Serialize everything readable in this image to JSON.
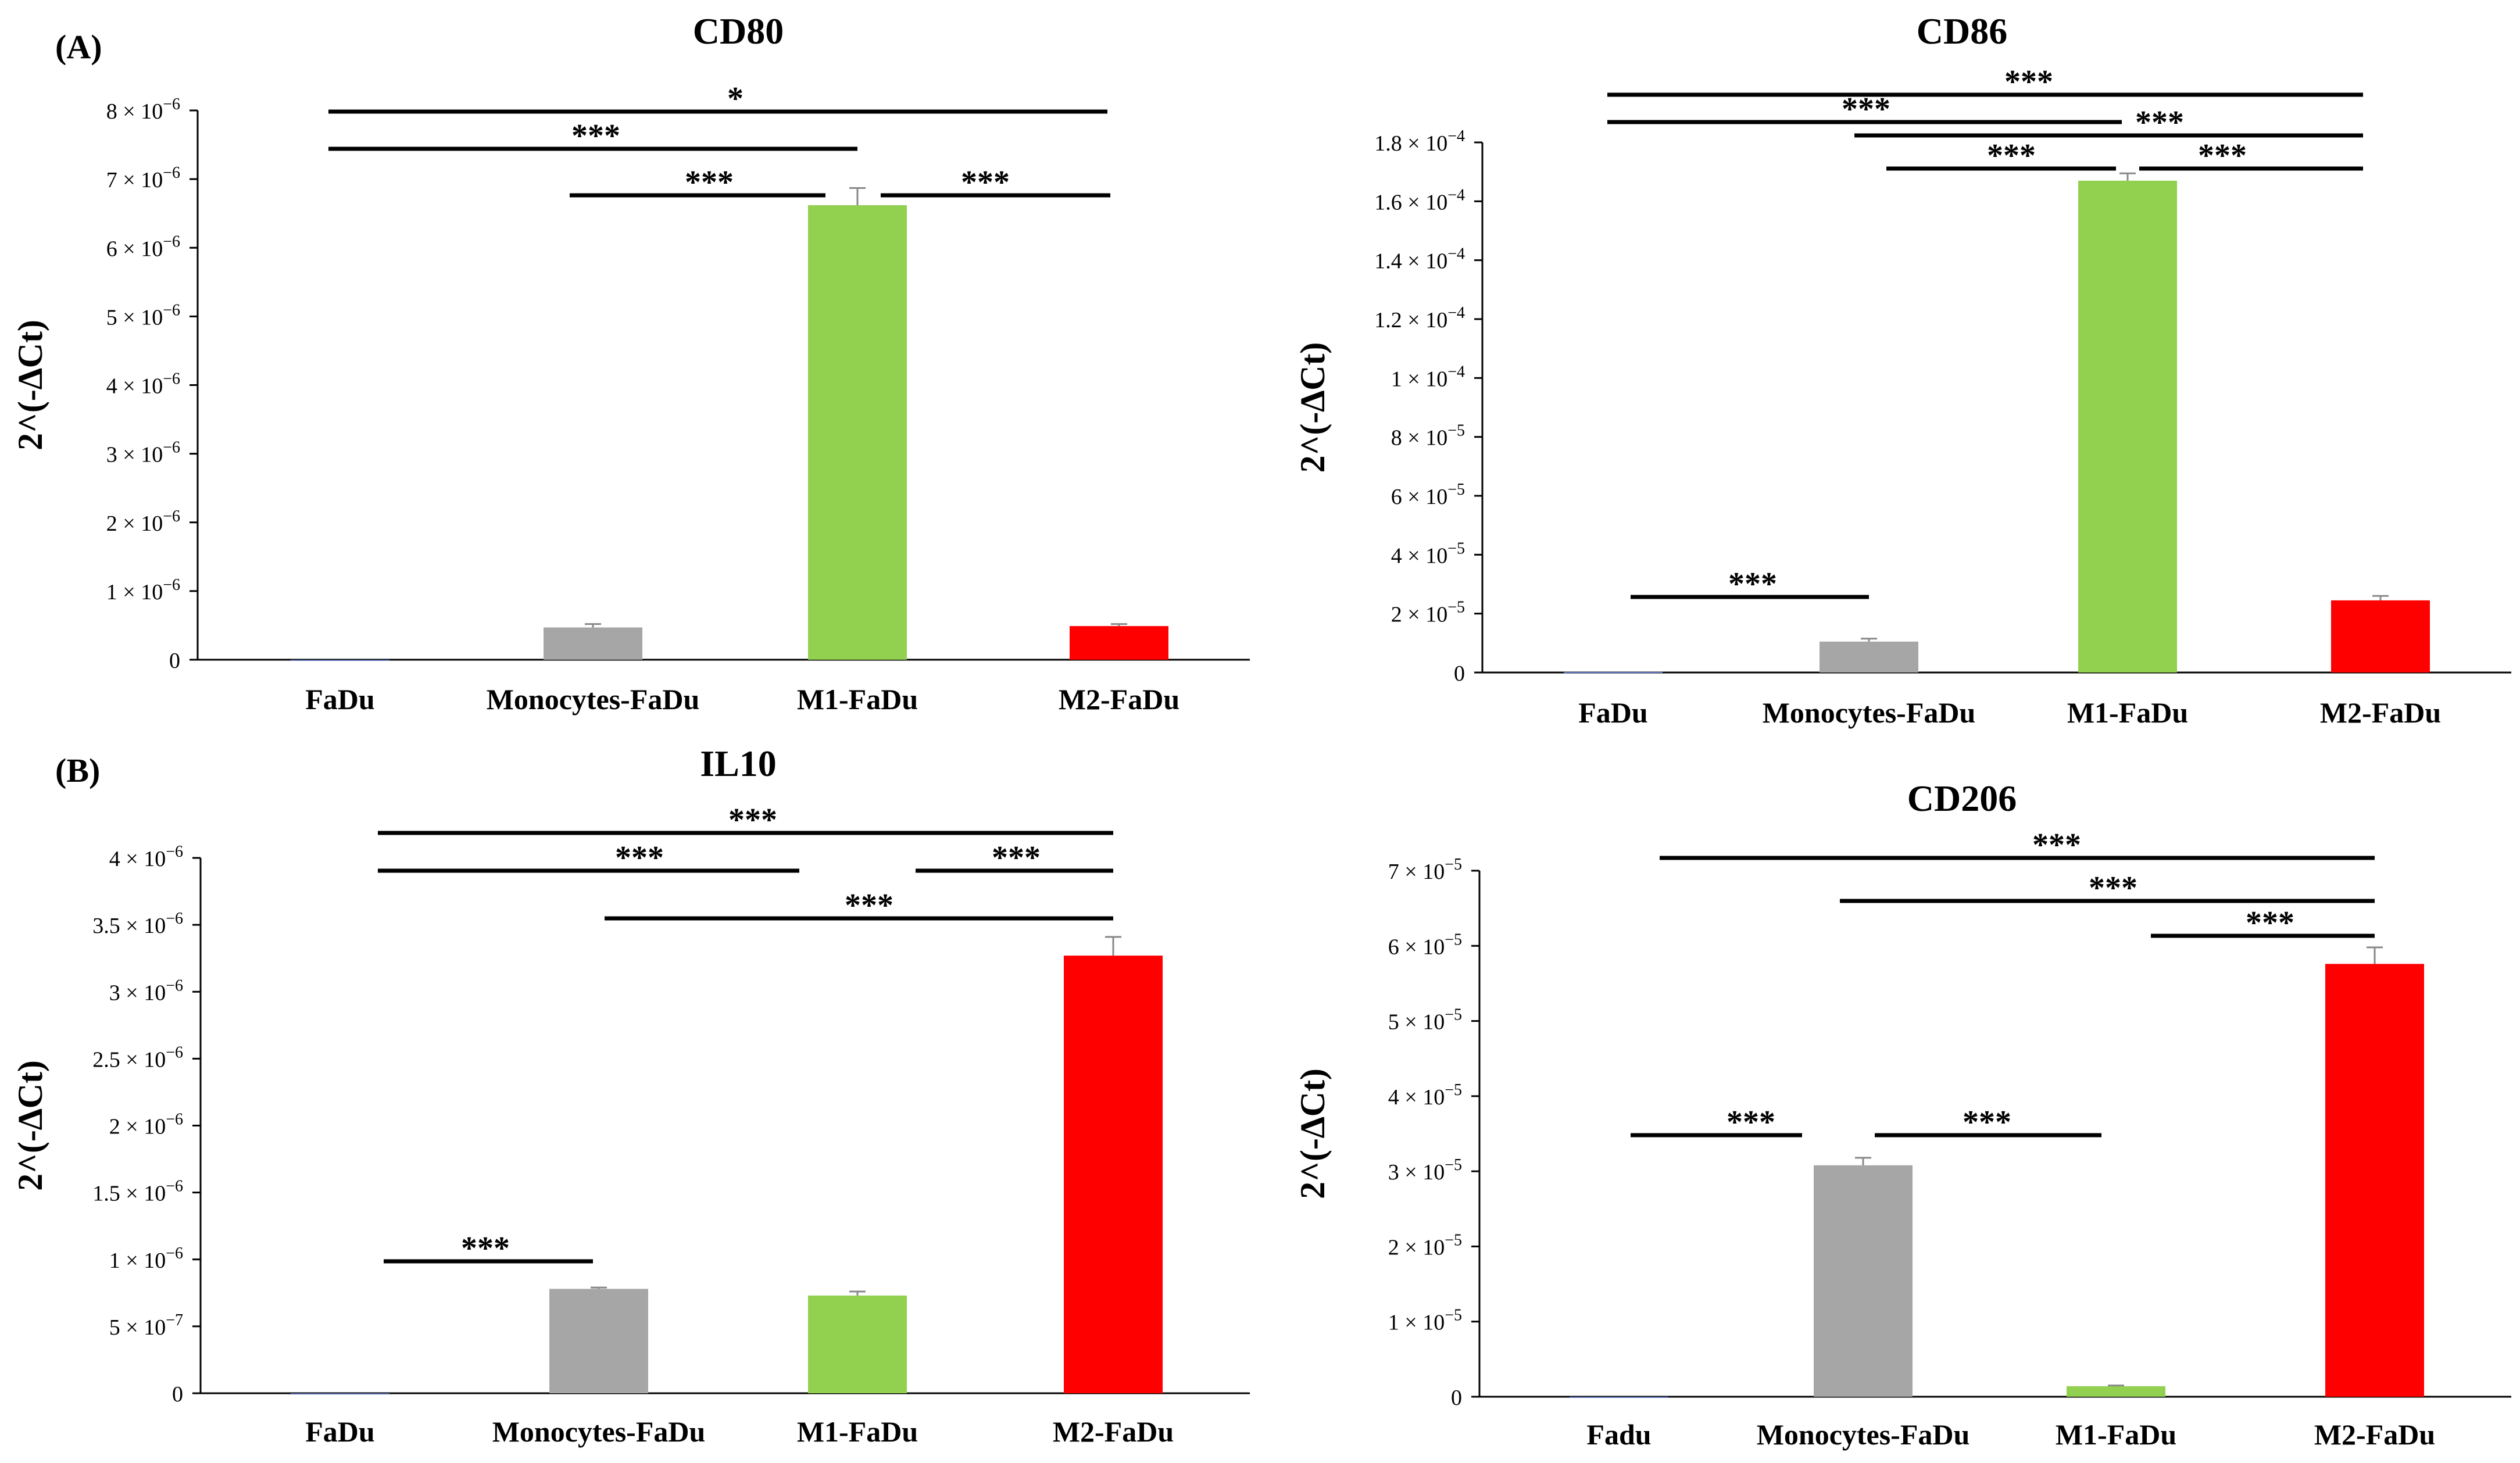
{
  "panel_labels": [
    "(A)",
    "(B)"
  ],
  "colors": {
    "FaDu": "#5b6fb5",
    "Monocytes-FaDu": "#a6a6a6",
    "M1-FaDu": "#92d050",
    "M2-FaDu": "#ff0000",
    "axis": "#000000",
    "error": "#888888"
  },
  "chart_data": [
    {
      "type": "bar",
      "title": "CD80",
      "ylabel": "2^(-∆Ct)",
      "categories": [
        "FaDu",
        "Monocytes-FaDu",
        "M1-FaDu",
        "M2-FaDu"
      ],
      "values": [
        0,
        4.7e-07,
        6.62e-06,
        4.9e-07
      ],
      "errors": [
        0,
        5e-08,
        2.5e-07,
        3e-08
      ],
      "ylim": [
        0,
        8e-06
      ],
      "yticks": [
        0,
        1e-06,
        2e-06,
        3e-06,
        4e-06,
        5e-06,
        6e-06,
        7e-06,
        8e-06
      ],
      "ytick_labels": [
        {
          "base": "0",
          "exp": ""
        },
        {
          "base": "1 × 10",
          "exp": "−6"
        },
        {
          "base": "2 × 10",
          "exp": "−6"
        },
        {
          "base": "3 × 10",
          "exp": "−6"
        },
        {
          "base": "4 × 10",
          "exp": "−6"
        },
        {
          "base": "5 × 10",
          "exp": "−6"
        },
        {
          "base": "6 × 10",
          "exp": "−6"
        },
        {
          "base": "7 × 10",
          "exp": "−6"
        },
        {
          "base": "8 × 10",
          "exp": "−6"
        }
      ],
      "significance": [
        {
          "from": "FaDu",
          "to": "M2-FaDu",
          "label": "*"
        },
        {
          "from": "FaDu",
          "to": "M1-FaDu",
          "label": "***"
        },
        {
          "from": "Monocytes-FaDu",
          "to": "M1-FaDu",
          "label": "***"
        },
        {
          "from": "M1-FaDu",
          "to": "M2-FaDu",
          "label": "***"
        }
      ]
    },
    {
      "type": "bar",
      "title": "CD86",
      "ylabel": "2^(-∆Ct)",
      "categories": [
        "FaDu",
        "Monocytes-FaDu",
        "M1-FaDu",
        "M2-FaDu"
      ],
      "values": [
        2e-07,
        1.05e-05,
        0.000167,
        2.45e-05
      ],
      "errors": [
        0,
        1e-06,
        2.5e-06,
        1.5e-06
      ],
      "ylim": [
        0,
        0.00018
      ],
      "yticks": [
        0,
        2e-05,
        4e-05,
        6e-05,
        8e-05,
        0.0001,
        0.00012,
        0.00014,
        0.00016,
        0.00018
      ],
      "ytick_labels": [
        {
          "base": "0",
          "exp": ""
        },
        {
          "base": "2 × 10",
          "exp": "−5"
        },
        {
          "base": "4 × 10",
          "exp": "−5"
        },
        {
          "base": "6 × 10",
          "exp": "−5"
        },
        {
          "base": "8 × 10",
          "exp": "−5"
        },
        {
          "base": "1 × 10",
          "exp": "−4"
        },
        {
          "base": "1.2 × 10",
          "exp": "−4"
        },
        {
          "base": "1.4 × 10",
          "exp": "−4"
        },
        {
          "base": "1.6 × 10",
          "exp": "−4"
        },
        {
          "base": "1.8 × 10",
          "exp": "−4"
        }
      ],
      "significance": [
        {
          "from": "FaDu",
          "to": "M2-FaDu",
          "label": "***"
        },
        {
          "from": "FaDu",
          "to": "M1-FaDu",
          "label": "***"
        },
        {
          "from": "Monocytes-FaDu",
          "to": "M2-FaDu",
          "label": "***"
        },
        {
          "from": "Monocytes-FaDu",
          "to": "M1-FaDu",
          "label": "***"
        },
        {
          "from": "M1-FaDu",
          "to": "M2-FaDu",
          "label": "***"
        },
        {
          "from": "FaDu",
          "to": "Monocytes-FaDu",
          "label": "***"
        }
      ]
    },
    {
      "type": "bar",
      "title": "IL10",
      "ylabel": "2^(-∆Ct)",
      "categories": [
        "FaDu",
        "Monocytes-FaDu",
        "M1-FaDu",
        "M2-FaDu"
      ],
      "values": [
        0,
        7.8e-07,
        7.3e-07,
        3.27e-06
      ],
      "errors": [
        0,
        1e-08,
        3e-08,
        1.4e-07
      ],
      "ylim": [
        0,
        4e-06
      ],
      "yticks": [
        0,
        5e-07,
        1e-06,
        1.5e-06,
        2e-06,
        2.5e-06,
        3e-06,
        3.5e-06,
        4e-06
      ],
      "ytick_labels": [
        {
          "base": "0",
          "exp": ""
        },
        {
          "base": "5 × 10",
          "exp": "−7"
        },
        {
          "base": "1 × 10",
          "exp": "−6"
        },
        {
          "base": "1.5 × 10",
          "exp": "−6"
        },
        {
          "base": "2 × 10",
          "exp": "−6"
        },
        {
          "base": "2.5 × 10",
          "exp": "−6"
        },
        {
          "base": "3 × 10",
          "exp": "−6"
        },
        {
          "base": "3.5 × 10",
          "exp": "−6"
        },
        {
          "base": "4 × 10",
          "exp": "−6"
        }
      ],
      "significance": [
        {
          "from": "FaDu",
          "to": "M2-FaDu",
          "label": "***"
        },
        {
          "from": "FaDu",
          "to": "M1-FaDu",
          "label": "***"
        },
        {
          "from": "M1-FaDu",
          "to": "M2-FaDu",
          "label": "***"
        },
        {
          "from": "Monocytes-FaDu",
          "to": "M2-FaDu",
          "label": "***"
        },
        {
          "from": "FaDu",
          "to": "Monocytes-FaDu",
          "label": "***"
        }
      ]
    },
    {
      "type": "bar",
      "title": "CD206",
      "ylabel": "2^(-∆Ct)",
      "categories": [
        "Fadu",
        "Monocytes-FaDu",
        "M1-FaDu",
        "M2-FaDu"
      ],
      "values": [
        0,
        3.08e-05,
        1.4e-06,
        5.76e-05
      ],
      "errors": [
        0,
        1e-06,
        1e-07,
        2.2e-06
      ],
      "ylim": [
        0,
        7e-05
      ],
      "yticks": [
        0,
        1e-05,
        2e-05,
        3e-05,
        4e-05,
        5e-05,
        6e-05,
        7e-05
      ],
      "ytick_labels": [
        {
          "base": "0",
          "exp": ""
        },
        {
          "base": "1 × 10",
          "exp": "−5"
        },
        {
          "base": "2 × 10",
          "exp": "−5"
        },
        {
          "base": "3 × 10",
          "exp": "−5"
        },
        {
          "base": "4 × 10",
          "exp": "−5"
        },
        {
          "base": "5 × 10",
          "exp": "−5"
        },
        {
          "base": "6 × 10",
          "exp": "−5"
        },
        {
          "base": "7 × 10",
          "exp": "−5"
        }
      ],
      "significance": [
        {
          "from": "Fadu",
          "to": "M2-FaDu",
          "label": "***"
        },
        {
          "from": "Monocytes-FaDu",
          "to": "M2-FaDu",
          "label": "***"
        },
        {
          "from": "M1-FaDu",
          "to": "M2-FaDu",
          "label": "***"
        },
        {
          "from": "Fadu",
          "to": "Monocytes-FaDu",
          "label": "***"
        },
        {
          "from": "Monocytes-FaDu",
          "to": "M1-FaDu",
          "label": "***"
        }
      ]
    }
  ]
}
